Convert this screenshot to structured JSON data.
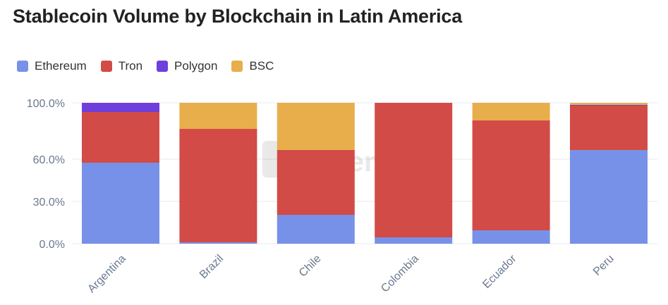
{
  "chart_data": {
    "type": "bar",
    "stacked": true,
    "title": "Stablecoin Volume by Blockchain in Latin America",
    "xlabel": "",
    "ylabel": "",
    "ylim": [
      0,
      100
    ],
    "yticks": [
      "0.0%",
      "30.0%",
      "60.0%",
      "100.0%"
    ],
    "ytick_values": [
      0,
      30,
      60,
      100
    ],
    "legend_position": "top-left",
    "grid": true,
    "watermark": "Artemis",
    "categories": [
      "Argentina",
      "Brazil",
      "Chile",
      "Colombia",
      "Ecuador",
      "Peru"
    ],
    "series": [
      {
        "name": "Ethereum",
        "color": "#7891e8",
        "values": [
          57.5,
          1,
          20.5,
          4.5,
          9.5,
          66.5
        ]
      },
      {
        "name": "Tron",
        "color": "#d24b47",
        "values": [
          36,
          80.5,
          46,
          95.5,
          78,
          31.5
        ]
      },
      {
        "name": "Polygon",
        "color": "#6f3fdc",
        "values": [
          6.5,
          0,
          0,
          0,
          0,
          0.5
        ]
      },
      {
        "name": "BSC",
        "color": "#e8ae4b",
        "values": [
          0,
          18.5,
          33.5,
          0,
          12.5,
          1.5
        ]
      }
    ]
  }
}
